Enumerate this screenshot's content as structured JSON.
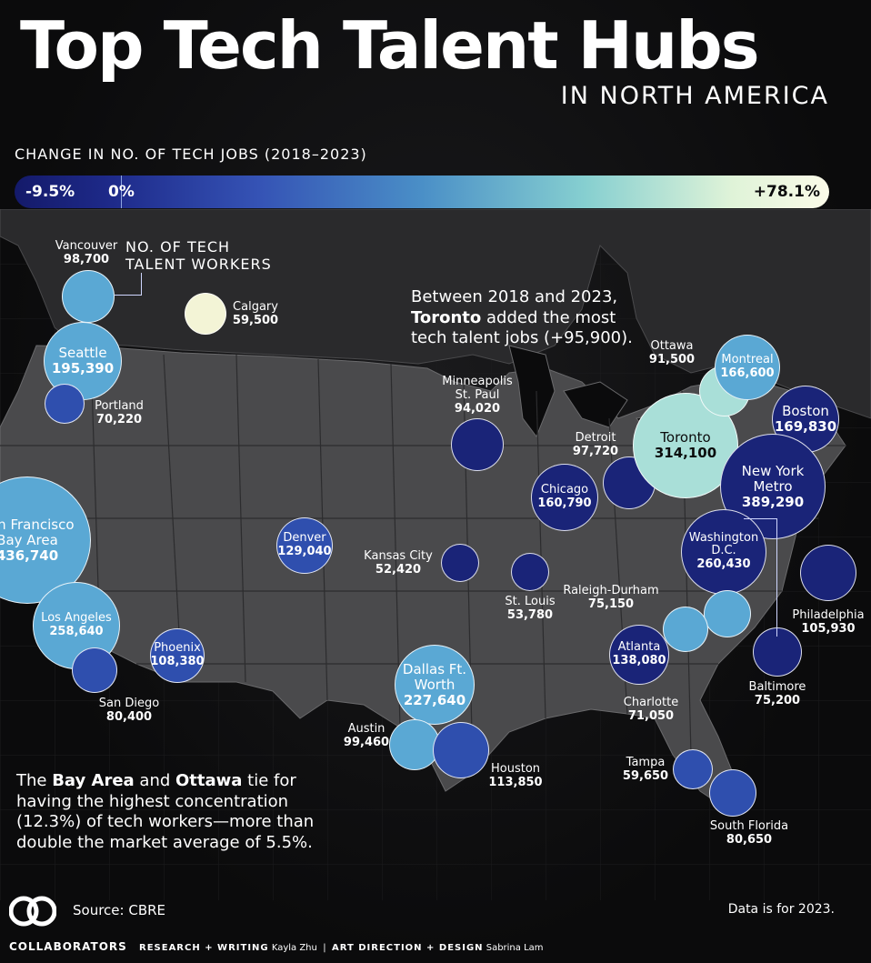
{
  "title": "Top Tech Talent Hubs",
  "subtitle": "IN NORTH AMERICA",
  "legend": {
    "title": "CHANGE IN NO. OF TECH JOBS (2018–2023)",
    "min": "-9.5%",
    "zero": "0%",
    "max": "+78.1%"
  },
  "count_title": [
    "NO. OF TECH",
    "TALENT WORKERS"
  ],
  "toronto_note": {
    "line1": "Between 2018 and 2023,",
    "bold": "Toronto",
    "line2_rest": " added the most",
    "line3": "tech talent jobs (+95,900)."
  },
  "bay_note": {
    "pre": "The ",
    "bold1": "Bay Area",
    "mid": " and ",
    "bold2": "Ottawa",
    "post": " tie for",
    "line2": "having the highest concentration",
    "line3": "(12.3%) of tech workers—more than",
    "line4": "double the market average of 5.5%."
  },
  "source": "Source: CBRE",
  "data_year": "Data is for 2023.",
  "footer": {
    "brand": "COLLABORATORS",
    "research_label": "RESEARCH + WRITING",
    "research_name": "Kayla Zhu",
    "design_label": "ART DIRECTION + DESIGN",
    "design_name": "Sabrina Lam"
  },
  "colors": {
    "deep": "#1a2478",
    "mid": "#2f4fae",
    "light": "#5aa8d4",
    "pale": "#a9dfd8",
    "cream": "#f3f4d6"
  },
  "cities": [
    {
      "name": "Vancouver",
      "value": "98,700"
    },
    {
      "name": "Calgary",
      "value": "59,500"
    },
    {
      "name": "Seattle",
      "value": "195,390"
    },
    {
      "name": "Portland",
      "value": "70,220"
    },
    {
      "name": "San Francisco Bay Area",
      "value": "436,740"
    },
    {
      "name": "Los Angeles",
      "value": "258,640"
    },
    {
      "name": "San Diego",
      "value": "80,400"
    },
    {
      "name": "Phoenix",
      "value": "108,380"
    },
    {
      "name": "Denver",
      "value": "129,040"
    },
    {
      "name": "Kansas City",
      "value": "52,420"
    },
    {
      "name": "St. Louis",
      "value": "53,780"
    },
    {
      "name": "Minneapolis St. Paul",
      "value": "94,020"
    },
    {
      "name": "Chicago",
      "value": "160,790"
    },
    {
      "name": "Detroit",
      "value": "97,720"
    },
    {
      "name": "Toronto",
      "value": "314,100"
    },
    {
      "name": "Ottawa",
      "value": "91,500"
    },
    {
      "name": "Montreal",
      "value": "166,600"
    },
    {
      "name": "Boston",
      "value": "169,830"
    },
    {
      "name": "New York Metro",
      "value": "389,290"
    },
    {
      "name": "Philadelphia",
      "value": "105,930"
    },
    {
      "name": "Washington D.C.",
      "value": "260,430"
    },
    {
      "name": "Baltimore",
      "value": "75,200"
    },
    {
      "name": "Raleigh-Durham",
      "value": "75,150"
    },
    {
      "name": "Charlotte",
      "value": "71,050"
    },
    {
      "name": "Atlanta",
      "value": "138,080"
    },
    {
      "name": "Dallas Ft. Worth",
      "value": "227,640"
    },
    {
      "name": "Austin",
      "value": "99,460"
    },
    {
      "name": "Houston",
      "value": "113,850"
    },
    {
      "name": "Tampa",
      "value": "59,650"
    },
    {
      "name": "South Florida",
      "value": "80,650"
    }
  ]
}
